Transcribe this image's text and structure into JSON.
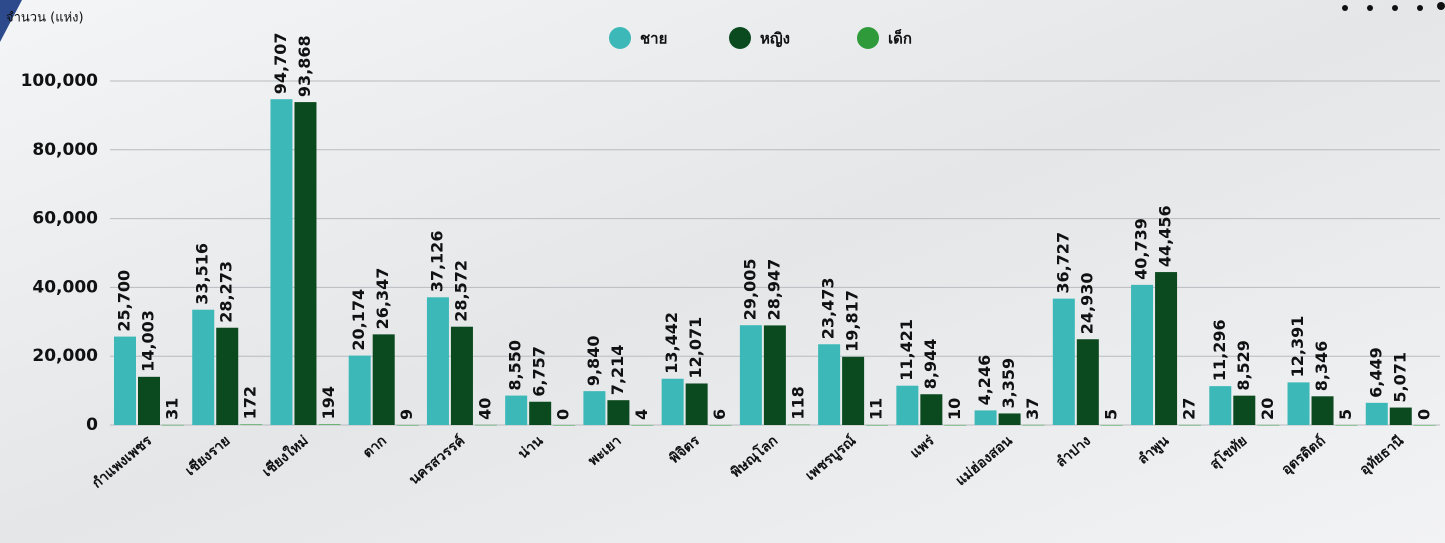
{
  "chart_data": {
    "type": "bar",
    "y_label": "จำนวน (แห่ง)",
    "categories": [
      "กำแพงเพชร",
      "เชียงราย",
      "เชียงใหม่",
      "ตาก",
      "นครสวรรค์",
      "น่าน",
      "พะเยา",
      "พิจิตร",
      "พิษณุโลก",
      "เพชรบูรณ์",
      "แพร่",
      "แม่ฮ่องสอน",
      "ลำปาง",
      "ลำพูน",
      "สุโขทัย",
      "อุตรดิตถ์",
      "อุทัยธานี"
    ],
    "series": [
      {
        "name": "ชาย",
        "color": "#3cb8b8",
        "values": [
          25700,
          33516,
          94707,
          20174,
          37126,
          8550,
          9840,
          13442,
          29005,
          23473,
          11421,
          4246,
          36727,
          40739,
          11296,
          12391,
          6449
        ],
        "value_labels": [
          "25,700",
          "33,516",
          "94,707",
          "20,174",
          "37,126",
          "8,550",
          "9,840",
          "13,442",
          "29,005",
          "23,473",
          "11,421",
          "4,246",
          "36,727",
          "40,739",
          "11,296",
          "12,391",
          "6,449"
        ]
      },
      {
        "name": "หญิง",
        "color": "#0b4a1f",
        "values": [
          14003,
          28273,
          93868,
          26347,
          28572,
          6757,
          7214,
          12071,
          28947,
          19817,
          8944,
          3359,
          24930,
          44456,
          8529,
          8346,
          5071
        ],
        "value_labels": [
          "14,003",
          "28,273",
          "93,868",
          "26,347",
          "28,572",
          "6,757",
          "7,214",
          "12,071",
          "28,947",
          "19,817",
          "8,944",
          "3,359",
          "24,930",
          "44,456",
          "8,529",
          "8,346",
          "5,071"
        ]
      },
      {
        "name": "เด็ก",
        "color": "#2e9a3a",
        "values": [
          31,
          172,
          194,
          9,
          40,
          0,
          4,
          6,
          118,
          11,
          10,
          37,
          5,
          27,
          20,
          5,
          0
        ]
      }
    ],
    "ylim": [
      0,
      100000
    ],
    "yticks": [
      0,
      {
        "value": 20000,
        "label": "20,000"
      },
      {
        "value": 40000,
        "label": "40,000"
      },
      {
        "value": 60000,
        "label": "60,000"
      },
      {
        "value": 80000,
        "label": "80,000"
      },
      {
        "value": 100000,
        "label": "100,000"
      }
    ],
    "grid": true,
    "legend": "top"
  }
}
